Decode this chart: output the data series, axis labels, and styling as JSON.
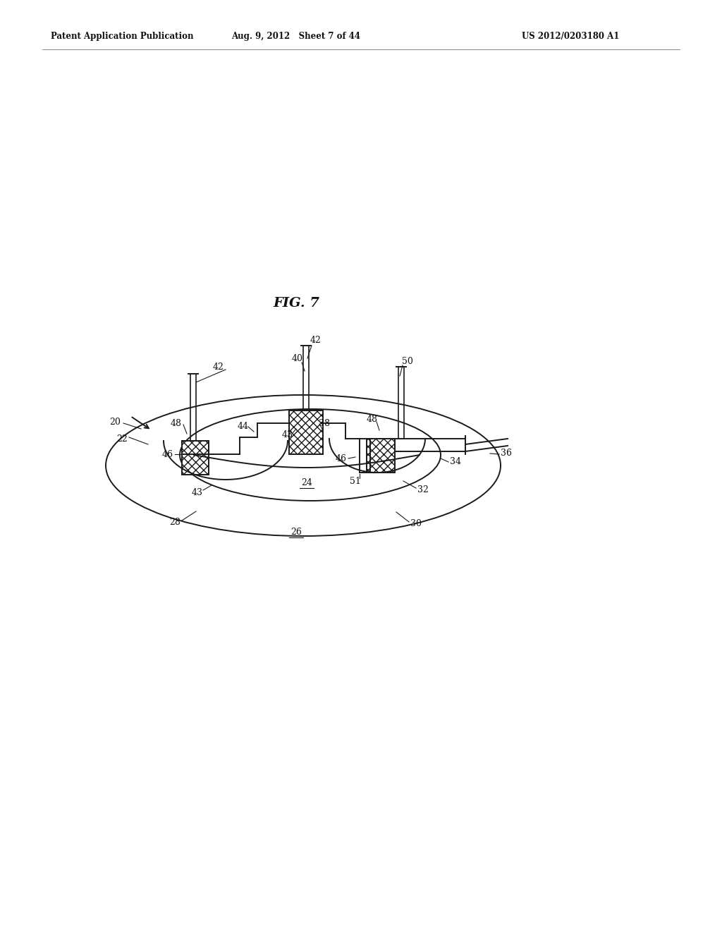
{
  "bg_color": "#ffffff",
  "line_color": "#1a1a1a",
  "header_left": "Patent Application Publication",
  "header_mid": "Aug. 9, 2012   Sheet 7 of 44",
  "header_right": "US 2012/0203180 A1",
  "fig_label": "FIG. 7"
}
